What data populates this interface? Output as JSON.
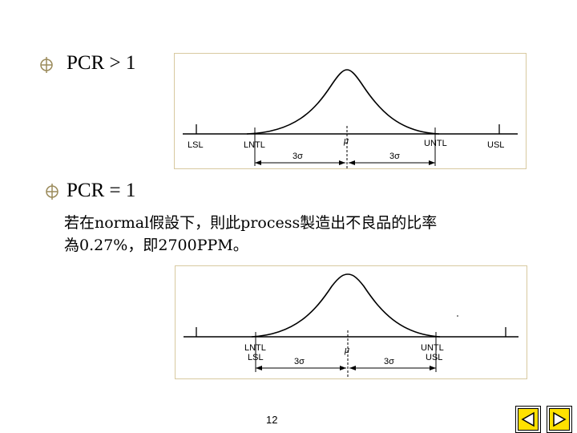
{
  "slide": {
    "heading1": "PCR > 1",
    "heading2": "PCR = 1",
    "paragraph_line1": "若在normal假設下，則此process製造出不良品的比率",
    "paragraph_line2": "為0.27%，即2700PPM。",
    "page_number": "12"
  },
  "figure1": {
    "lsl": "LSL",
    "lntl": "LNTL",
    "untl": "UNTL",
    "usl": "USL",
    "mu": "μ",
    "left_sigma": "3σ",
    "right_sigma": "3σ"
  },
  "figure2": {
    "lntl": "LNTL",
    "lsl": "LSL",
    "untl": "UNTL",
    "usl": "USL",
    "mu": "μ",
    "left_sigma": "3σ",
    "right_sigma": "3σ"
  },
  "navigation": {
    "prev_icon": "triangle-left-icon",
    "next_icon": "triangle-right-icon"
  },
  "colors": {
    "bullet": "#9a8a5a",
    "figure_border": "#d8c9a0",
    "nav_fill": "#ffe100"
  }
}
